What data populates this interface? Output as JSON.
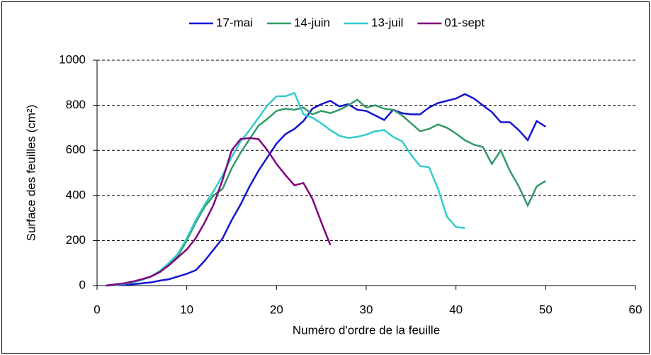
{
  "chart_data": {
    "type": "line",
    "x_label": "Numéro d'ordre de la feuille",
    "y_label": "Surface des feuilles (cm²)",
    "x": [
      1,
      2,
      3,
      4,
      5,
      6,
      7,
      8,
      9,
      10,
      11,
      12,
      13,
      14,
      15,
      16,
      17,
      18,
      19,
      20,
      21,
      22,
      23,
      24,
      25,
      26,
      27,
      28,
      29,
      30,
      31,
      32,
      33,
      34,
      35,
      36,
      37,
      38,
      39,
      40,
      41,
      42,
      43,
      44,
      45,
      46,
      47,
      48,
      49,
      50
    ],
    "series": [
      {
        "name": "17-mai",
        "color": "#1414d2",
        "values": [
          0,
          2,
          4,
          6,
          10,
          14,
          22,
          28,
          40,
          52,
          68,
          110,
          160,
          210,
          290,
          360,
          440,
          510,
          570,
          630,
          672,
          695,
          730,
          785,
          805,
          820,
          795,
          805,
          780,
          775,
          755,
          735,
          780,
          765,
          760,
          760,
          790,
          810,
          820,
          830,
          850,
          830,
          800,
          770,
          725,
          725,
          690,
          645,
          730,
          705
        ]
      },
      {
        "name": "14-juin",
        "color": "#339966",
        "values": [
          0,
          3,
          8,
          15,
          25,
          40,
          60,
          90,
          130,
          200,
          280,
          350,
          400,
          430,
          520,
          590,
          650,
          710,
          740,
          775,
          785,
          780,
          790,
          760,
          775,
          765,
          780,
          800,
          825,
          790,
          800,
          785,
          780,
          755,
          720,
          685,
          695,
          715,
          700,
          675,
          645,
          625,
          615,
          540,
          600,
          510,
          440,
          355,
          440,
          465
        ]
      },
      {
        "name": "13-juil",
        "color": "#33cccc",
        "values": [
          0,
          3,
          8,
          15,
          25,
          40,
          65,
          100,
          140,
          210,
          290,
          360,
          420,
          490,
          570,
          640,
          690,
          745,
          800,
          840,
          840,
          855,
          760,
          745,
          720,
          690,
          665,
          655,
          660,
          670,
          685,
          690,
          660,
          640,
          580,
          530,
          525,
          430,
          305,
          260,
          255,
          null,
          null,
          null,
          null,
          null,
          null,
          null,
          null,
          null
        ]
      },
      {
        "name": "01-sept",
        "color": "#800080",
        "values": [
          0,
          5,
          10,
          18,
          28,
          40,
          60,
          90,
          125,
          160,
          210,
          280,
          360,
          470,
          600,
          650,
          655,
          650,
          600,
          540,
          490,
          445,
          455,
          385,
          280,
          180,
          null,
          null,
          null,
          null,
          null,
          null,
          null,
          null,
          null,
          null,
          null,
          null,
          null,
          null,
          null,
          null,
          null,
          null,
          null,
          null,
          null,
          null,
          null,
          null
        ]
      }
    ],
    "xlim": [
      0,
      60
    ],
    "xticks": [
      0,
      10,
      20,
      30,
      40,
      50,
      60
    ],
    "ylim": [
      0,
      1000
    ],
    "yticks": [
      0,
      200,
      400,
      600,
      800,
      1000
    ],
    "grid": true,
    "legend": "top"
  }
}
